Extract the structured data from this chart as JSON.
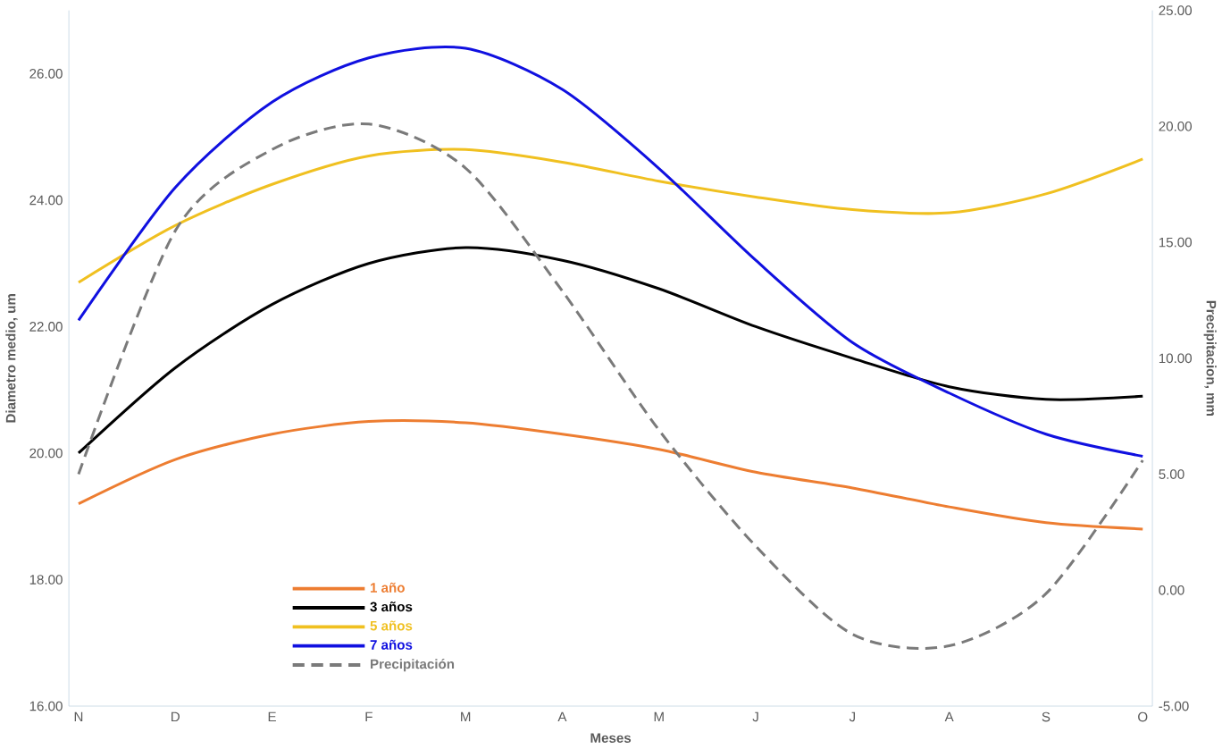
{
  "chart_data": {
    "type": "line",
    "xlabel": "Meses",
    "ylabel": "Diametro medio, um",
    "y2label": "Precipitacion, mm",
    "categories": [
      "N",
      "D",
      "E",
      "F",
      "M",
      "A",
      "M",
      "J",
      "J",
      "A",
      "S",
      "O"
    ],
    "series": [
      {
        "name": "1 año",
        "color": "#ed7d31",
        "values": [
          19.2,
          19.9,
          20.3,
          20.5,
          20.48,
          20.3,
          20.06,
          19.7,
          19.45,
          19.15,
          18.9,
          18.8
        ]
      },
      {
        "name": "3 años",
        "color": "#000000",
        "values": [
          20.0,
          21.35,
          22.35,
          23.0,
          23.25,
          23.05,
          22.6,
          22.0,
          21.5,
          21.05,
          20.85,
          20.9
        ]
      },
      {
        "name": "5 años",
        "color": "#f0c020",
        "values": [
          22.7,
          23.6,
          24.25,
          24.7,
          24.8,
          24.6,
          24.3,
          24.05,
          23.85,
          23.8,
          24.1,
          24.65
        ]
      },
      {
        "name": "7 años",
        "color": "#1010e0",
        "values": [
          22.1,
          24.2,
          25.55,
          26.25,
          26.4,
          25.75,
          24.5,
          23.05,
          21.75,
          20.95,
          20.3,
          19.95
        ]
      },
      {
        "name": "Precipitación",
        "color": "#7a7a7a",
        "axis": "y2",
        "line_style": "dashed",
        "values": [
          5.0,
          15.5,
          19.0,
          20.1,
          18.2,
          12.9,
          6.9,
          1.9,
          -1.9,
          -2.4,
          -0.15,
          5.6
        ]
      }
    ],
    "ylim": [
      16,
      27
    ],
    "yticks": [
      {
        "value": 16,
        "label": "16.00"
      },
      {
        "value": 18,
        "label": "18.00"
      },
      {
        "value": 20,
        "label": "20.00"
      },
      {
        "value": 22,
        "label": "22.00"
      },
      {
        "value": 24,
        "label": "24.00"
      },
      {
        "value": 26,
        "label": "26.00"
      }
    ],
    "y2lim": [
      -5,
      25
    ],
    "y2ticks": [
      {
        "value": -5,
        "label": "-5.00"
      },
      {
        "value": 0,
        "label": "0.00"
      },
      {
        "value": 5,
        "label": "5.00"
      },
      {
        "value": 10,
        "label": "10.00"
      },
      {
        "value": 15,
        "label": "15.00"
      },
      {
        "value": 20,
        "label": "20.00"
      },
      {
        "value": 25,
        "label": "25.00"
      }
    ],
    "legend": "bottom left",
    "grid": false,
    "marker": "none",
    "line_style": "solid"
  }
}
